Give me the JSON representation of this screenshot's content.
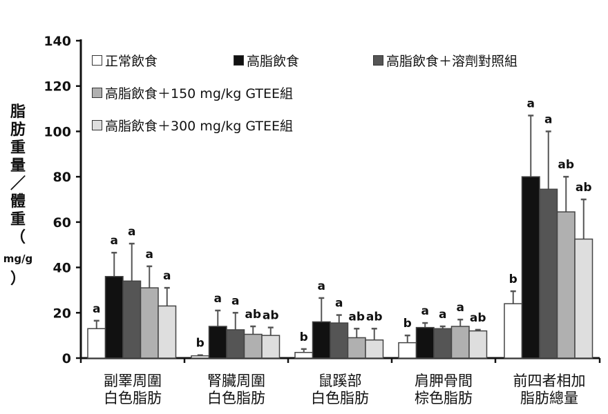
{
  "chart_data": {
    "type": "bar",
    "ylabel_parts": [
      "脂",
      "肪",
      "重",
      "量",
      "／",
      "體",
      "重",
      "（",
      "mg/g",
      "）"
    ],
    "ylim": [
      0,
      140
    ],
    "yticks": [
      0,
      20,
      40,
      60,
      80,
      100,
      120,
      140
    ],
    "categories": [
      [
        "副睪周圍",
        "白色脂肪"
      ],
      [
        "腎臟周圍",
        "白色脂肪"
      ],
      [
        "鼠蹊部",
        "白色脂肪"
      ],
      [
        "肩胛骨間",
        "棕色脂肪"
      ],
      [
        "前四者相加",
        "脂肪總量"
      ]
    ],
    "series": [
      {
        "name": "正常飲食",
        "color": "#ffffff",
        "values": [
          13,
          1,
          2.5,
          6.8,
          24
        ],
        "error": [
          3.5,
          0.3,
          1.5,
          3.2,
          5.5
        ],
        "labels": [
          "a",
          "b",
          "b",
          "b",
          "b"
        ]
      },
      {
        "name": "高脂飲食",
        "color": "#111111",
        "values": [
          36,
          14,
          16,
          13.5,
          80
        ],
        "error": [
          10.5,
          7,
          10.5,
          2,
          27
        ],
        "labels": [
          "a",
          "a",
          "a",
          "a",
          "a"
        ]
      },
      {
        "name": "高脂飲食＋溶劑對照組",
        "color": "#555555",
        "values": [
          34,
          12.5,
          15.5,
          13,
          74.5
        ],
        "error": [
          16.5,
          7.5,
          3.5,
          1,
          25.5
        ],
        "labels": [
          "a",
          "a",
          "a",
          "a",
          "a"
        ]
      },
      {
        "name": "高脂飲食＋150 mg/kg  GTEE組",
        "color": "#b0b0b0",
        "values": [
          31,
          10.5,
          9,
          14,
          64.5
        ],
        "error": [
          9.5,
          3.5,
          4,
          3,
          15.5
        ],
        "labels": [
          "a",
          "ab",
          "ab",
          "a",
          "ab"
        ]
      },
      {
        "name": "高脂飲食＋300 mg/kg  GTEE組",
        "color": "#dedede",
        "values": [
          23,
          10,
          8,
          12,
          52.5
        ],
        "error": [
          8,
          3.5,
          5,
          0.5,
          17.5
        ],
        "labels": [
          "a",
          "ab",
          "ab",
          "ab",
          "ab"
        ]
      }
    ],
    "legend_placement": "top",
    "grid": false
  }
}
